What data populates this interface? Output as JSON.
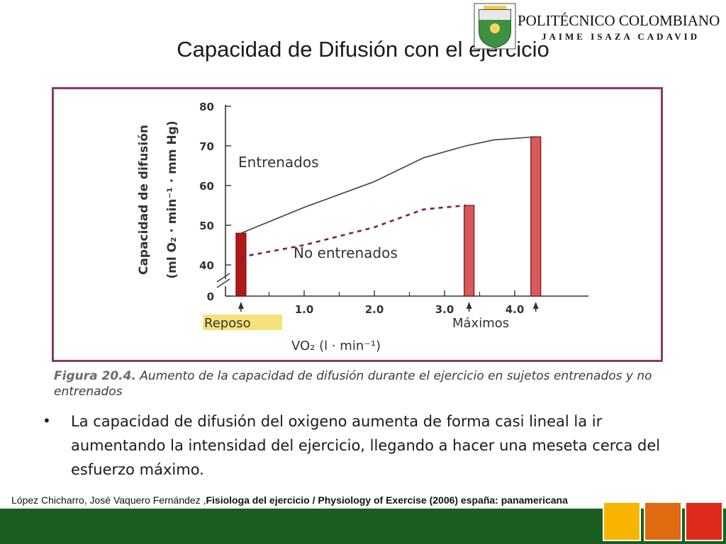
{
  "slide": {
    "title": "Capacidad de Difusión con el ejercicio",
    "logo_name": "POLITÉCNICO COLOMBIANO",
    "logo_subtitle": "JAIME ISAZA CADAVID",
    "bullet": "La capacidad de difusión del oxigeno aumenta de forma casi lineal la ir aumentando la intensidad del ejercicio, llegando a hacer una meseta cerca del esfuerzo máximo.",
    "reference_author": "López Chicharro, José Vaquero Fernández ,",
    "reference_bold": "Fisiologa del ejercicio / Physiology of Exercise (2006) españa: panamericana"
  },
  "caption": {
    "figure_no": "Figura 20.4.",
    "text": " Aumento de la capacidad de difusión durante el ejercicio en sujetos entrenados y no entrenados"
  },
  "colors": {
    "frame": "#8b3a68",
    "bar_rest": "#b01818",
    "bar_max": "#d65a5a",
    "line_trained": "#404040",
    "line_untrained": "#7a1e4e",
    "highlight": "#f6e27a",
    "footer_green": "#1b5e20",
    "square_yellow": "#f7b500",
    "square_orange": "#e06a10",
    "square_red": "#e02a1a"
  },
  "chart_data": {
    "type": "line",
    "ylabel_line1": "Capacidad de difusión",
    "ylabel_line2": "(ml O₂ · min⁻¹ · mm Hg)",
    "xlabel": "VO₂ (l · min⁻¹)",
    "yticks": [
      0,
      40,
      50,
      60,
      70,
      80
    ],
    "xticks": [
      "1.0",
      "2.0",
      "3.0",
      "4.0"
    ],
    "xlim": [
      0,
      4.8
    ],
    "ylim": [
      35,
      80
    ],
    "axis_break": true,
    "series": [
      {
        "name": "Entrenados",
        "style": "solid",
        "x": [
          0.1,
          1.0,
          2.0,
          2.7,
          3.3,
          3.7,
          4.3
        ],
        "y": [
          48,
          54.5,
          61,
          67,
          70,
          71.5,
          72.3
        ]
      },
      {
        "name": "No entrenados",
        "style": "dashed",
        "x": [
          0.1,
          1.0,
          2.0,
          2.7,
          3.3
        ],
        "y": [
          42,
          45,
          49.5,
          54,
          55
        ]
      }
    ],
    "bars": [
      {
        "label": "rest-trained",
        "x": 0.1,
        "value": 48
      },
      {
        "label": "max-untrained",
        "x": 3.35,
        "value": 55
      },
      {
        "label": "max-trained",
        "x": 4.3,
        "value": 72.3
      }
    ],
    "markers": [
      {
        "label": "Reposo",
        "x": 0.1
      },
      {
        "label": "Máximos",
        "x": 3.35
      },
      {
        "label": "Máximos",
        "x": 4.3
      }
    ],
    "annotations": {
      "reposo": "Reposo",
      "maximos": "Máximos"
    }
  }
}
